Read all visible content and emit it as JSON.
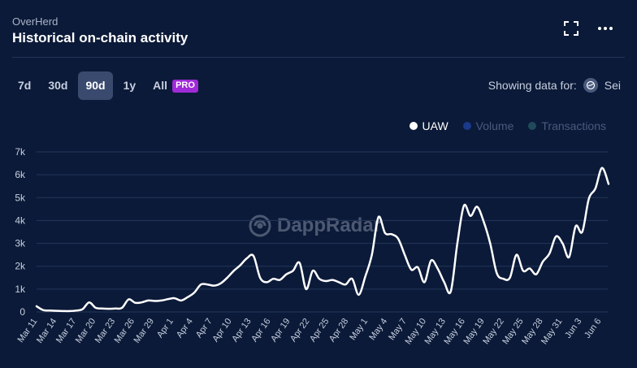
{
  "header": {
    "app_name": "OverHerd",
    "title": "Historical on-chain activity",
    "expand_icon": "expand-icon",
    "more_icon": "more-icon"
  },
  "tabs": [
    {
      "label": "7d",
      "active": false
    },
    {
      "label": "30d",
      "active": false
    },
    {
      "label": "90d",
      "active": true
    },
    {
      "label": "1y",
      "active": false
    },
    {
      "label": "All",
      "active": false,
      "badge": "PRO"
    }
  ],
  "showing": {
    "label": "Showing data for:",
    "chain": "Sei"
  },
  "legend": [
    {
      "label": "UAW",
      "color": "#ffffff",
      "active": true
    },
    {
      "label": "Volume",
      "color": "#1a3a8a",
      "active": false
    },
    {
      "label": "Transactions",
      "color": "#1f4a5a",
      "active": false
    }
  ],
  "watermark": {
    "text": "DappRadar"
  },
  "chart_data": {
    "type": "line",
    "y_ticks": [
      "0",
      "1k",
      "2k",
      "3k",
      "4k",
      "5k",
      "6k",
      "7k"
    ],
    "ylim": [
      0,
      7000
    ],
    "x_tick_labels": [
      "Mar 11",
      "Mar 14",
      "Mar 17",
      "Mar 20",
      "Mar 23",
      "Mar 26",
      "Mar 29",
      "Apr 1",
      "Apr 4",
      "Apr 7",
      "Apr 10",
      "Apr 13",
      "Apr 16",
      "Apr 19",
      "Apr 22",
      "Apr 25",
      "Apr 28",
      "May 1",
      "May 4",
      "May 7",
      "May 10",
      "May 13",
      "May 16",
      "May 19",
      "May 22",
      "May 25",
      "May 28",
      "May 31",
      "Jun 3",
      "Jun 6"
    ],
    "series": [
      {
        "name": "UAW",
        "color": "#ffffff",
        "values": [
          250,
          80,
          60,
          50,
          40,
          40,
          60,
          120,
          420,
          180,
          150,
          140,
          150,
          180,
          550,
          400,
          420,
          500,
          480,
          500,
          560,
          600,
          500,
          650,
          850,
          1200,
          1200,
          1150,
          1250,
          1500,
          1800,
          2050,
          2350,
          2450,
          1500,
          1300,
          1450,
          1400,
          1650,
          1800,
          2150,
          1000,
          1800,
          1450,
          1350,
          1400,
          1300,
          1200,
          1450,
          750,
          1550,
          2500,
          4150,
          3450,
          3400,
          3200,
          2500,
          1850,
          1950,
          1300,
          2250,
          1900,
          1300,
          900,
          3000,
          4650,
          4200,
          4600,
          3950,
          3000,
          1700,
          1450,
          1500,
          2500,
          1800,
          1900,
          1650,
          2200,
          2550,
          3300,
          3000,
          2400,
          3750,
          3500,
          4950,
          5400,
          6300,
          5600
        ]
      }
    ]
  }
}
